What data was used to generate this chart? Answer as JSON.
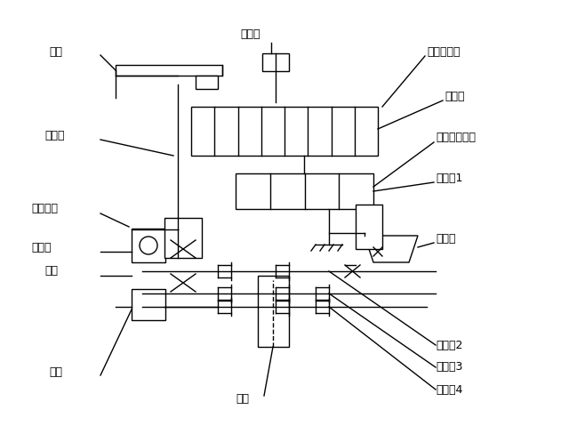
{
  "bg_color": "#ffffff",
  "line_color": "#000000",
  "labels": {
    "zhijia": "支架",
    "shuangchongtou": "双冲头",
    "moxingdaorujian": "模型导入件",
    "zhuanweipan": "转位盘",
    "lianganjian": "间歇槽轮机构",
    "chuandongzhou1": "传动轴1",
    "lianganjou": "连杆轴",
    "huodongliangan": "活动连杆",
    "zhichilun": "直齿轮",
    "shoulun": "手轮",
    "zhoucheng": "轴承",
    "dailun": "带轮",
    "chuandongzhou2": "传动轴2",
    "chuandongzhou3": "传动轴3",
    "chuandongzhou4": "传动轴4",
    "zhuichilun": "锥齿轮"
  },
  "figsize": [
    6.58,
    4.97
  ],
  "dpi": 100
}
